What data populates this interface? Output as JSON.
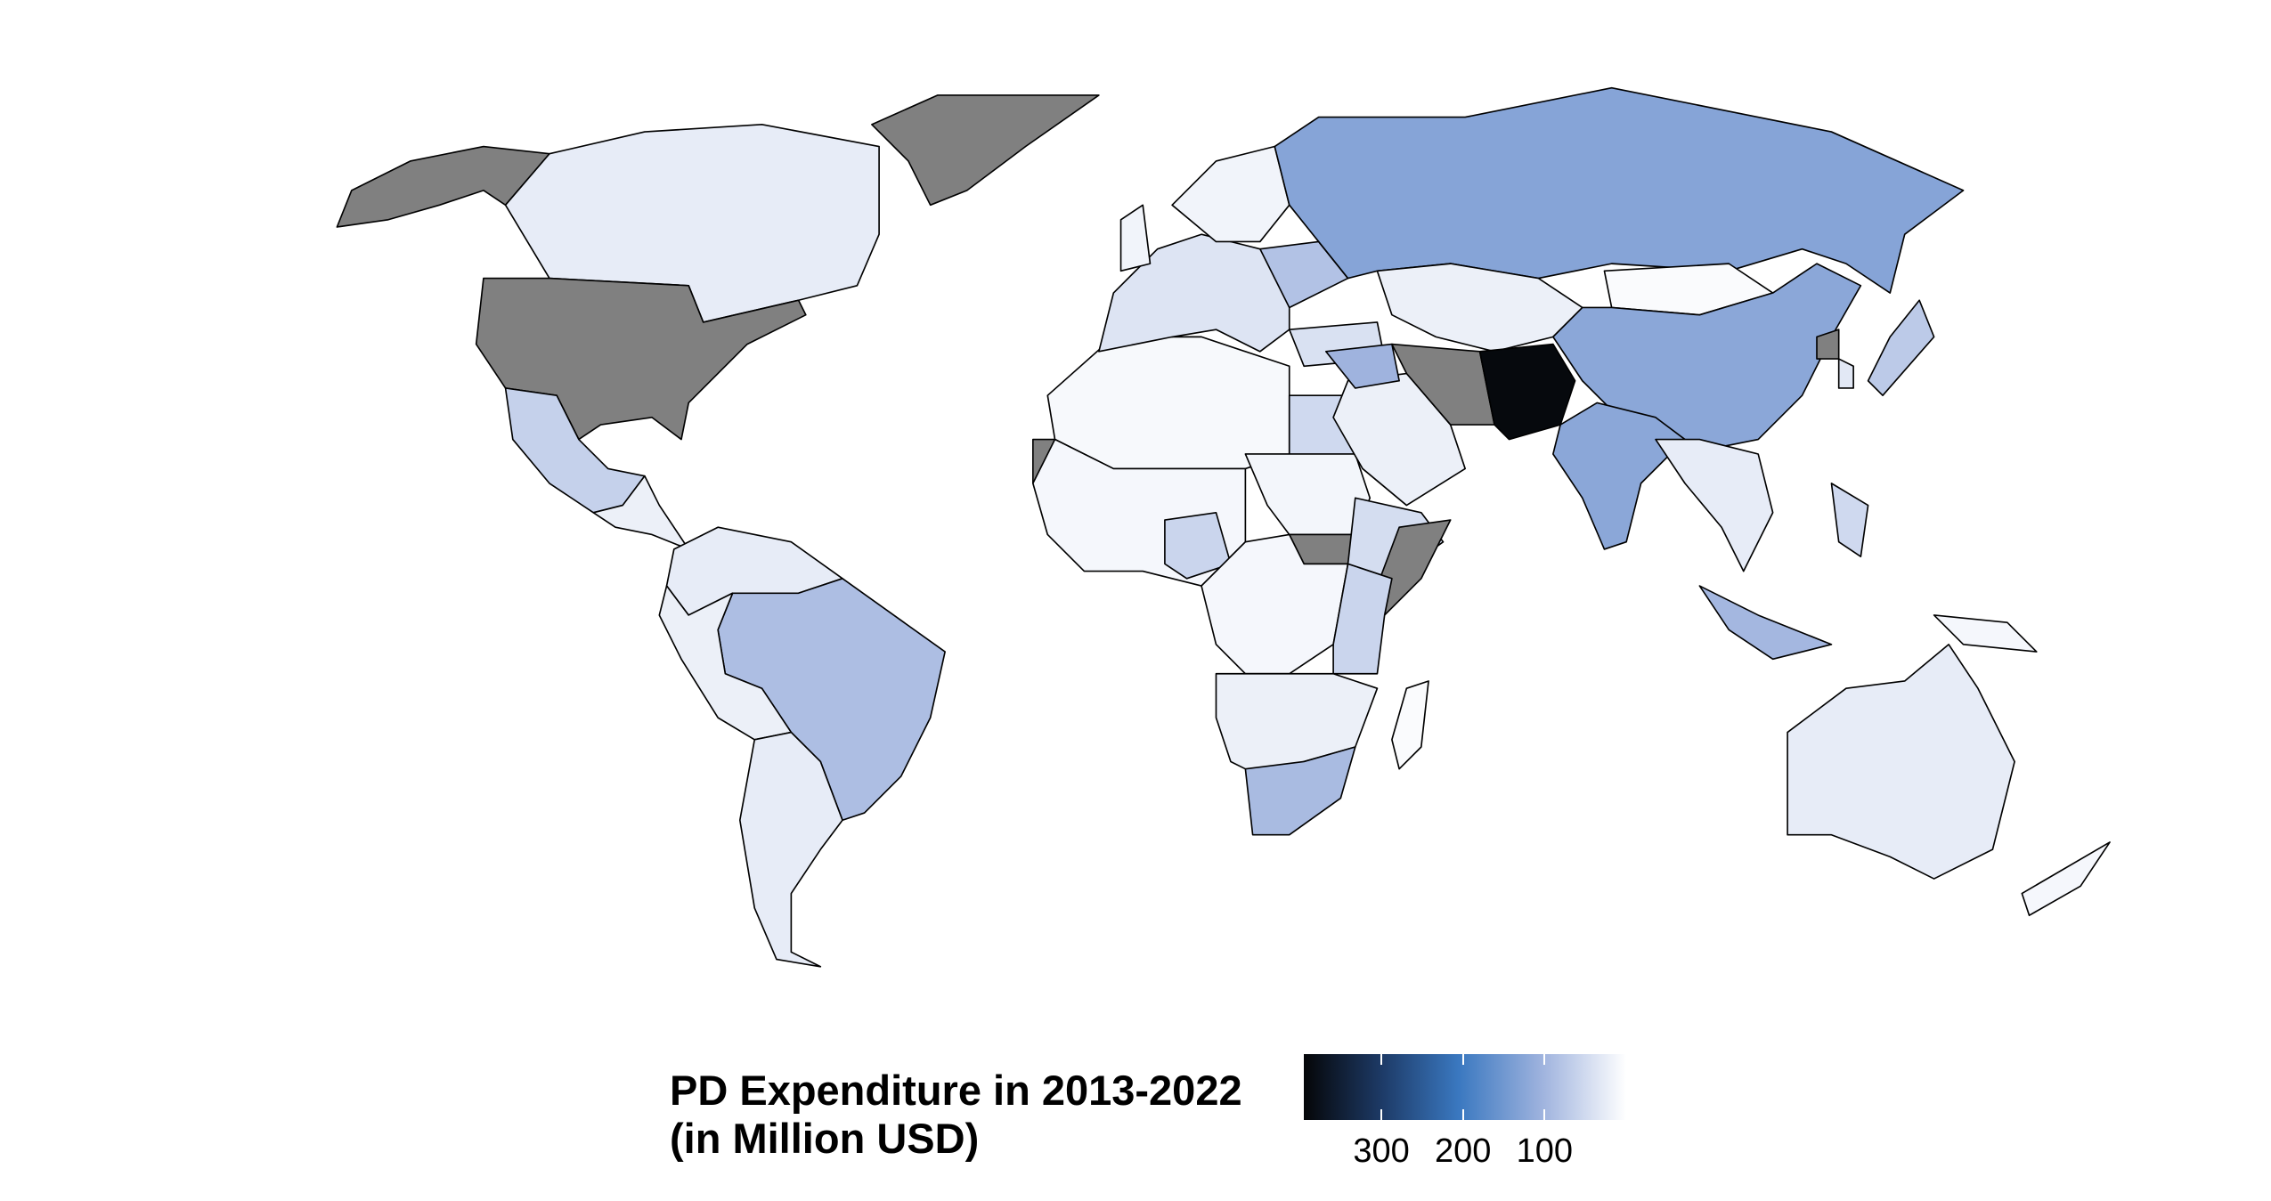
{
  "chart_data": {
    "type": "choropleth",
    "title": "",
    "legend": {
      "title_line1": "PD Expenditure in 2013-2022",
      "title_line2": "(in Million USD)",
      "placement": "bottom",
      "range": [
        0,
        395
      ],
      "reversed": true,
      "ticks": [
        {
          "value": 300,
          "label": "300"
        },
        {
          "value": 200,
          "label": "200"
        },
        {
          "value": 100,
          "label": "100"
        }
      ],
      "color_stops": [
        {
          "value": 0,
          "color": "#ffffff"
        },
        {
          "value": 100,
          "color": "#9fb3de"
        },
        {
          "value": 200,
          "color": "#3a78c0"
        },
        {
          "value": 300,
          "color": "#1d3a66"
        },
        {
          "value": 395,
          "color": "#050608"
        }
      ],
      "na_color": "#808080"
    },
    "regions": [
      {
        "name": "alaska-usa",
        "value": null
      },
      {
        "name": "canada",
        "value": 25
      },
      {
        "name": "usa",
        "value": null
      },
      {
        "name": "greenland",
        "value": null
      },
      {
        "name": "mexico",
        "value": 60
      },
      {
        "name": "central-america",
        "value": 20
      },
      {
        "name": "northern-south-america",
        "value": 25
      },
      {
        "name": "brazil",
        "value": 85
      },
      {
        "name": "andean-countries",
        "value": 20
      },
      {
        "name": "southern-cone",
        "value": 25
      },
      {
        "name": "north-africa",
        "value": 8
      },
      {
        "name": "egypt",
        "value": 50
      },
      {
        "name": "western-sahara",
        "value": null
      },
      {
        "name": "west-africa",
        "value": 10
      },
      {
        "name": "nigeria",
        "value": 55
      },
      {
        "name": "sudan",
        "value": 12
      },
      {
        "name": "south-sudan",
        "value": null
      },
      {
        "name": "ethiopia",
        "value": 45
      },
      {
        "name": "somalia",
        "value": null
      },
      {
        "name": "central-africa",
        "value": 10
      },
      {
        "name": "east-africa",
        "value": 55
      },
      {
        "name": "southern-africa",
        "value": 20
      },
      {
        "name": "south-africa",
        "value": 90
      },
      {
        "name": "madagascar",
        "value": 5
      },
      {
        "name": "western-europe",
        "value": 35
      },
      {
        "name": "scandinavia",
        "value": 15
      },
      {
        "name": "united-kingdom",
        "value": 15
      },
      {
        "name": "ukraine",
        "value": 80
      },
      {
        "name": "turkey",
        "value": 40
      },
      {
        "name": "russia",
        "value": 125
      },
      {
        "name": "central-asia",
        "value": 20
      },
      {
        "name": "mongolia",
        "value": 5
      },
      {
        "name": "china",
        "value": 120
      },
      {
        "name": "arabian-peninsula",
        "value": 20
      },
      {
        "name": "iraq-syria",
        "value": 100
      },
      {
        "name": "iran",
        "value": null
      },
      {
        "name": "afghanistan-pakistan",
        "value": 390
      },
      {
        "name": "india",
        "value": 120
      },
      {
        "name": "southeast-asia",
        "value": 25
      },
      {
        "name": "japan",
        "value": 70
      },
      {
        "name": "north-korea",
        "value": null
      },
      {
        "name": "south-korea",
        "value": 30
      },
      {
        "name": "indonesia",
        "value": 95
      },
      {
        "name": "philippines",
        "value": 50
      },
      {
        "name": "australia",
        "value": 25
      },
      {
        "name": "papua-new-guinea",
        "value": 10
      },
      {
        "name": "new-zealand",
        "value": 10
      }
    ]
  }
}
